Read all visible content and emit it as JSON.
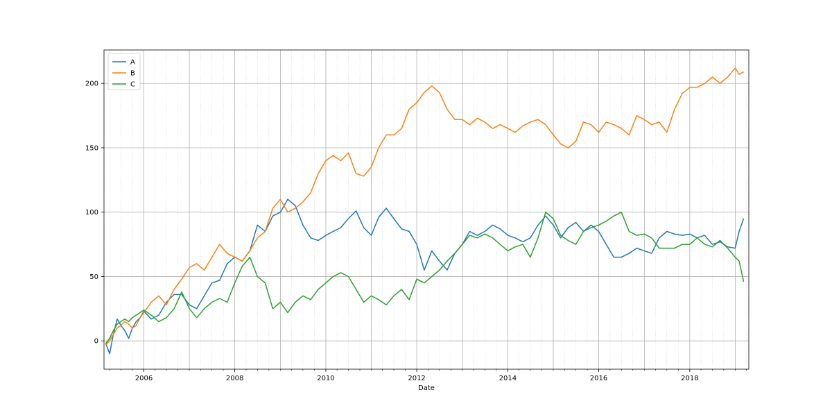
{
  "chart_data": {
    "type": "line",
    "xlabel": "Date",
    "ylabel": "",
    "title": "",
    "x_range": [
      "2005-02-15",
      "2019-04-20"
    ],
    "ylim": [
      -22,
      226
    ],
    "grid": true,
    "legend_position": "top-left",
    "x_ticks": [
      "2006",
      "2008",
      "2010",
      "2012",
      "2014",
      "2016",
      "2018"
    ],
    "y_ticks": [
      0,
      50,
      100,
      150,
      200
    ],
    "series": [
      {
        "name": "A",
        "color": "#1f77b4",
        "points": [
          [
            "2005-03-01",
            -2
          ],
          [
            "2005-04-01",
            -10
          ],
          [
            "2005-05-01",
            5
          ],
          [
            "2005-06-01",
            17
          ],
          [
            "2005-07-01",
            12
          ],
          [
            "2005-08-01",
            8
          ],
          [
            "2005-09-01",
            2
          ],
          [
            "2005-10-01",
            10
          ],
          [
            "2005-11-01",
            15
          ],
          [
            "2005-12-01",
            18
          ],
          [
            "2006-01-01",
            23
          ],
          [
            "2006-03-01",
            17
          ],
          [
            "2006-05-01",
            20
          ],
          [
            "2006-07-01",
            30
          ],
          [
            "2006-09-01",
            36
          ],
          [
            "2006-11-01",
            36
          ],
          [
            "2007-01-01",
            28
          ],
          [
            "2007-03-01",
            25
          ],
          [
            "2007-05-01",
            35
          ],
          [
            "2007-07-01",
            45
          ],
          [
            "2007-09-01",
            47
          ],
          [
            "2007-11-01",
            60
          ],
          [
            "2008-01-01",
            65
          ],
          [
            "2008-03-01",
            62
          ],
          [
            "2008-05-01",
            70
          ],
          [
            "2008-07-01",
            90
          ],
          [
            "2008-09-01",
            85
          ],
          [
            "2008-11-01",
            97
          ],
          [
            "2009-01-01",
            100
          ],
          [
            "2009-03-01",
            110
          ],
          [
            "2009-05-01",
            105
          ],
          [
            "2009-07-01",
            90
          ],
          [
            "2009-09-01",
            80
          ],
          [
            "2009-11-01",
            78
          ],
          [
            "2010-01-01",
            82
          ],
          [
            "2010-03-01",
            85
          ],
          [
            "2010-05-01",
            88
          ],
          [
            "2010-07-01",
            95
          ],
          [
            "2010-09-01",
            101
          ],
          [
            "2010-11-01",
            88
          ],
          [
            "2011-01-01",
            82
          ],
          [
            "2011-03-01",
            96
          ],
          [
            "2011-05-01",
            103
          ],
          [
            "2011-07-01",
            95
          ],
          [
            "2011-09-01",
            87
          ],
          [
            "2011-11-01",
            85
          ],
          [
            "2012-01-01",
            75
          ],
          [
            "2012-03-01",
            55
          ],
          [
            "2012-05-01",
            70
          ],
          [
            "2012-07-01",
            62
          ],
          [
            "2012-09-01",
            55
          ],
          [
            "2012-11-01",
            68
          ],
          [
            "2013-01-01",
            75
          ],
          [
            "2013-03-01",
            85
          ],
          [
            "2013-05-01",
            82
          ],
          [
            "2013-07-01",
            85
          ],
          [
            "2013-09-01",
            90
          ],
          [
            "2013-11-01",
            87
          ],
          [
            "2014-01-01",
            82
          ],
          [
            "2014-03-01",
            80
          ],
          [
            "2014-05-01",
            77
          ],
          [
            "2014-07-01",
            80
          ],
          [
            "2014-09-01",
            90
          ],
          [
            "2014-11-01",
            97
          ],
          [
            "2015-01-01",
            90
          ],
          [
            "2015-03-01",
            80
          ],
          [
            "2015-05-01",
            88
          ],
          [
            "2015-07-01",
            92
          ],
          [
            "2015-09-01",
            85
          ],
          [
            "2015-11-01",
            90
          ],
          [
            "2016-01-01",
            85
          ],
          [
            "2016-03-01",
            75
          ],
          [
            "2016-05-01",
            65
          ],
          [
            "2016-07-01",
            65
          ],
          [
            "2016-09-01",
            68
          ],
          [
            "2016-11-01",
            72
          ],
          [
            "2017-01-01",
            70
          ],
          [
            "2017-03-01",
            68
          ],
          [
            "2017-05-01",
            80
          ],
          [
            "2017-07-01",
            85
          ],
          [
            "2017-09-01",
            83
          ],
          [
            "2017-11-01",
            82
          ],
          [
            "2018-01-01",
            83
          ],
          [
            "2018-03-01",
            80
          ],
          [
            "2018-05-01",
            82
          ],
          [
            "2018-07-01",
            75
          ],
          [
            "2018-09-01",
            77
          ],
          [
            "2018-11-01",
            73
          ],
          [
            "2019-01-01",
            72
          ],
          [
            "2019-02-01",
            85
          ],
          [
            "2019-03-10",
            95
          ]
        ]
      },
      {
        "name": "B",
        "color": "#ff7f0e",
        "points": [
          [
            "2005-03-01",
            -3
          ],
          [
            "2005-04-01",
            0
          ],
          [
            "2005-05-01",
            5
          ],
          [
            "2005-06-01",
            10
          ],
          [
            "2005-07-01",
            12
          ],
          [
            "2005-08-01",
            15
          ],
          [
            "2005-09-01",
            13
          ],
          [
            "2005-10-01",
            10
          ],
          [
            "2005-11-01",
            12
          ],
          [
            "2005-12-01",
            18
          ],
          [
            "2006-01-01",
            22
          ],
          [
            "2006-03-01",
            30
          ],
          [
            "2006-05-01",
            35
          ],
          [
            "2006-07-01",
            28
          ],
          [
            "2006-09-01",
            40
          ],
          [
            "2006-11-01",
            48
          ],
          [
            "2007-01-01",
            57
          ],
          [
            "2007-03-01",
            60
          ],
          [
            "2007-05-01",
            55
          ],
          [
            "2007-07-01",
            65
          ],
          [
            "2007-09-01",
            75
          ],
          [
            "2007-11-01",
            68
          ],
          [
            "2008-01-01",
            65
          ],
          [
            "2008-03-01",
            62
          ],
          [
            "2008-05-01",
            70
          ],
          [
            "2008-07-01",
            80
          ],
          [
            "2008-09-01",
            85
          ],
          [
            "2008-11-01",
            103
          ],
          [
            "2009-01-01",
            110
          ],
          [
            "2009-03-01",
            100
          ],
          [
            "2009-05-01",
            103
          ],
          [
            "2009-07-01",
            108
          ],
          [
            "2009-09-01",
            115
          ],
          [
            "2009-11-01",
            130
          ],
          [
            "2010-01-01",
            140
          ],
          [
            "2010-03-01",
            144
          ],
          [
            "2010-05-01",
            140
          ],
          [
            "2010-07-01",
            146
          ],
          [
            "2010-09-01",
            130
          ],
          [
            "2010-11-01",
            128
          ],
          [
            "2011-01-01",
            135
          ],
          [
            "2011-03-01",
            150
          ],
          [
            "2011-05-01",
            160
          ],
          [
            "2011-07-01",
            160
          ],
          [
            "2011-09-01",
            165
          ],
          [
            "2011-11-01",
            180
          ],
          [
            "2012-01-01",
            185
          ],
          [
            "2012-03-01",
            193
          ],
          [
            "2012-05-01",
            198
          ],
          [
            "2012-07-01",
            193
          ],
          [
            "2012-09-01",
            180
          ],
          [
            "2012-11-01",
            172
          ],
          [
            "2013-01-01",
            172
          ],
          [
            "2013-03-01",
            168
          ],
          [
            "2013-05-01",
            173
          ],
          [
            "2013-07-01",
            170
          ],
          [
            "2013-09-01",
            165
          ],
          [
            "2013-11-01",
            168
          ],
          [
            "2014-01-01",
            165
          ],
          [
            "2014-03-01",
            162
          ],
          [
            "2014-05-01",
            167
          ],
          [
            "2014-07-01",
            170
          ],
          [
            "2014-09-01",
            172
          ],
          [
            "2014-11-01",
            168
          ],
          [
            "2015-01-01",
            160
          ],
          [
            "2015-03-01",
            153
          ],
          [
            "2015-05-01",
            150
          ],
          [
            "2015-07-01",
            155
          ],
          [
            "2015-09-01",
            170
          ],
          [
            "2015-11-01",
            168
          ],
          [
            "2016-01-01",
            162
          ],
          [
            "2016-03-01",
            170
          ],
          [
            "2016-05-01",
            168
          ],
          [
            "2016-07-01",
            165
          ],
          [
            "2016-09-01",
            160
          ],
          [
            "2016-11-01",
            175
          ],
          [
            "2017-01-01",
            172
          ],
          [
            "2017-03-01",
            168
          ],
          [
            "2017-05-01",
            170
          ],
          [
            "2017-07-01",
            162
          ],
          [
            "2017-09-01",
            180
          ],
          [
            "2017-11-01",
            192
          ],
          [
            "2018-01-01",
            197
          ],
          [
            "2018-03-01",
            197
          ],
          [
            "2018-05-01",
            200
          ],
          [
            "2018-07-01",
            205
          ],
          [
            "2018-09-01",
            200
          ],
          [
            "2018-11-01",
            205
          ],
          [
            "2019-01-01",
            212
          ],
          [
            "2019-02-01",
            207
          ],
          [
            "2019-03-10",
            209
          ]
        ]
      },
      {
        "name": "C",
        "color": "#2ca02c",
        "points": [
          [
            "2005-03-01",
            -2
          ],
          [
            "2005-04-01",
            2
          ],
          [
            "2005-05-01",
            8
          ],
          [
            "2005-06-01",
            13
          ],
          [
            "2005-07-01",
            15
          ],
          [
            "2005-08-01",
            17
          ],
          [
            "2005-09-01",
            15
          ],
          [
            "2005-10-01",
            18
          ],
          [
            "2005-11-01",
            20
          ],
          [
            "2005-12-01",
            22
          ],
          [
            "2006-01-01",
            24
          ],
          [
            "2006-03-01",
            20
          ],
          [
            "2006-05-01",
            15
          ],
          [
            "2006-07-01",
            18
          ],
          [
            "2006-09-01",
            25
          ],
          [
            "2006-11-01",
            38
          ],
          [
            "2007-01-01",
            25
          ],
          [
            "2007-03-01",
            18
          ],
          [
            "2007-05-01",
            25
          ],
          [
            "2007-07-01",
            30
          ],
          [
            "2007-09-01",
            33
          ],
          [
            "2007-11-01",
            30
          ],
          [
            "2008-01-01",
            45
          ],
          [
            "2008-03-01",
            58
          ],
          [
            "2008-05-01",
            65
          ],
          [
            "2008-07-01",
            50
          ],
          [
            "2008-09-01",
            45
          ],
          [
            "2008-11-01",
            25
          ],
          [
            "2009-01-01",
            30
          ],
          [
            "2009-03-01",
            22
          ],
          [
            "2009-05-01",
            30
          ],
          [
            "2009-07-01",
            35
          ],
          [
            "2009-09-01",
            32
          ],
          [
            "2009-11-01",
            40
          ],
          [
            "2010-01-01",
            45
          ],
          [
            "2010-03-01",
            50
          ],
          [
            "2010-05-01",
            53
          ],
          [
            "2010-07-01",
            50
          ],
          [
            "2010-09-01",
            40
          ],
          [
            "2010-11-01",
            30
          ],
          [
            "2011-01-01",
            35
          ],
          [
            "2011-03-01",
            32
          ],
          [
            "2011-05-01",
            28
          ],
          [
            "2011-07-01",
            35
          ],
          [
            "2011-09-01",
            40
          ],
          [
            "2011-11-01",
            32
          ],
          [
            "2012-01-01",
            48
          ],
          [
            "2012-03-01",
            45
          ],
          [
            "2012-05-01",
            50
          ],
          [
            "2012-07-01",
            55
          ],
          [
            "2012-09-01",
            62
          ],
          [
            "2012-11-01",
            68
          ],
          [
            "2013-01-01",
            75
          ],
          [
            "2013-03-01",
            82
          ],
          [
            "2013-05-01",
            80
          ],
          [
            "2013-07-01",
            83
          ],
          [
            "2013-09-01",
            80
          ],
          [
            "2013-11-01",
            75
          ],
          [
            "2014-01-01",
            70
          ],
          [
            "2014-03-01",
            73
          ],
          [
            "2014-05-01",
            75
          ],
          [
            "2014-07-01",
            65
          ],
          [
            "2014-09-01",
            80
          ],
          [
            "2014-11-01",
            100
          ],
          [
            "2015-01-01",
            95
          ],
          [
            "2015-03-01",
            82
          ],
          [
            "2015-05-01",
            78
          ],
          [
            "2015-07-01",
            75
          ],
          [
            "2015-09-01",
            85
          ],
          [
            "2015-11-01",
            88
          ],
          [
            "2016-01-01",
            90
          ],
          [
            "2016-03-01",
            93
          ],
          [
            "2016-05-01",
            97
          ],
          [
            "2016-07-01",
            100
          ],
          [
            "2016-09-01",
            85
          ],
          [
            "2016-11-01",
            82
          ],
          [
            "2017-01-01",
            83
          ],
          [
            "2017-03-01",
            80
          ],
          [
            "2017-05-01",
            72
          ],
          [
            "2017-07-01",
            72
          ],
          [
            "2017-09-01",
            72
          ],
          [
            "2017-11-01",
            75
          ],
          [
            "2018-01-01",
            75
          ],
          [
            "2018-03-01",
            80
          ],
          [
            "2018-05-01",
            75
          ],
          [
            "2018-07-01",
            73
          ],
          [
            "2018-09-01",
            78
          ],
          [
            "2018-11-01",
            72
          ],
          [
            "2019-01-01",
            65
          ],
          [
            "2019-02-01",
            62
          ],
          [
            "2019-03-10",
            46
          ]
        ]
      }
    ]
  }
}
